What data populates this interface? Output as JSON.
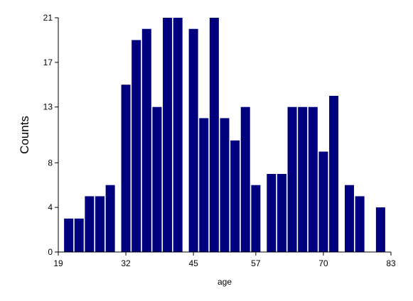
{
  "chart_data": {
    "type": "bar",
    "xlabel": "age",
    "ylabel": "Counts",
    "xlim": [
      19,
      83
    ],
    "ylim": [
      0,
      21
    ],
    "x_ticks": [
      "19",
      "32",
      "45",
      "57",
      "70",
      "83"
    ],
    "y_ticks": [
      "0",
      "4",
      "8",
      "13",
      "17",
      "21"
    ],
    "bar_color": "#00007f",
    "grid": false,
    "bars": [
      {
        "x": 21,
        "value": 3
      },
      {
        "x": 23,
        "value": 3
      },
      {
        "x": 25,
        "value": 5
      },
      {
        "x": 27,
        "value": 5
      },
      {
        "x": 29,
        "value": 6
      },
      {
        "x": 32,
        "value": 15
      },
      {
        "x": 34,
        "value": 19
      },
      {
        "x": 36,
        "value": 20
      },
      {
        "x": 38,
        "value": 13
      },
      {
        "x": 40,
        "value": 21
      },
      {
        "x": 42,
        "value": 21
      },
      {
        "x": 45,
        "value": 20
      },
      {
        "x": 47,
        "value": 12
      },
      {
        "x": 49,
        "value": 21
      },
      {
        "x": 51,
        "value": 12
      },
      {
        "x": 53,
        "value": 10
      },
      {
        "x": 55,
        "value": 13
      },
      {
        "x": 57,
        "value": 6
      },
      {
        "x": 60,
        "value": 7
      },
      {
        "x": 62,
        "value": 7
      },
      {
        "x": 64,
        "value": 13
      },
      {
        "x": 66,
        "value": 13
      },
      {
        "x": 68,
        "value": 13
      },
      {
        "x": 70,
        "value": 9
      },
      {
        "x": 72,
        "value": 14
      },
      {
        "x": 75,
        "value": 6
      },
      {
        "x": 77,
        "value": 5
      },
      {
        "x": 81,
        "value": 4
      }
    ]
  }
}
